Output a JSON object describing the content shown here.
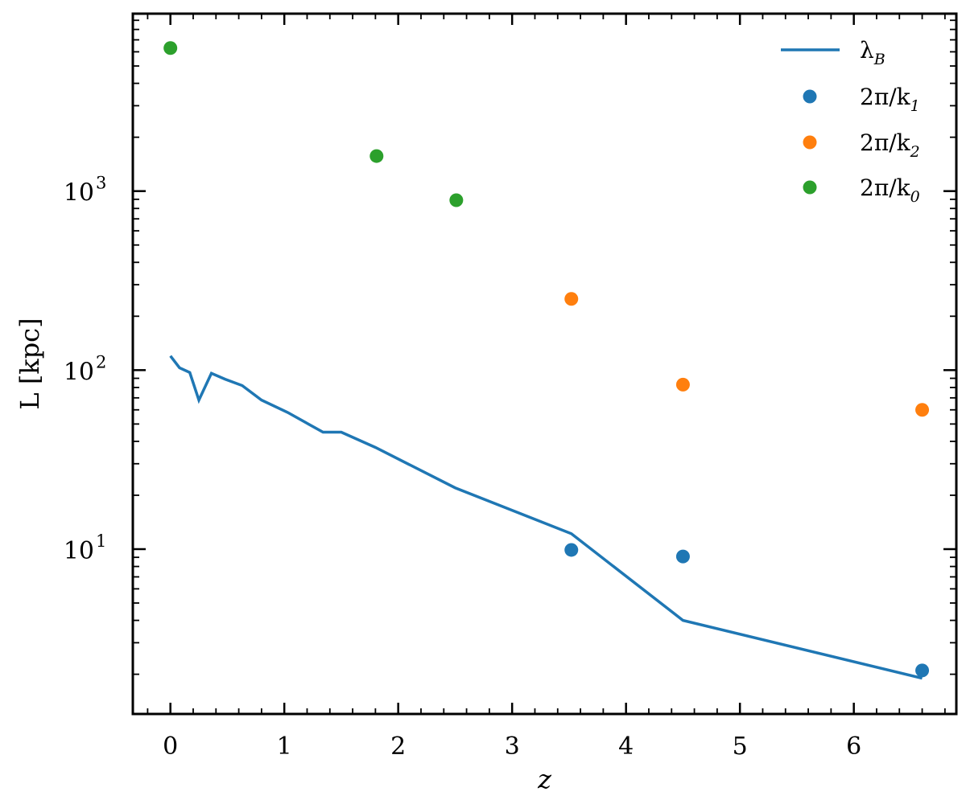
{
  "chart_data": {
    "type": "line+scatter",
    "xlabel": "z",
    "ylabel": "L [kpc]",
    "xlim": [
      -0.33,
      6.9
    ],
    "ylim": [
      1.2,
      9800
    ],
    "yscale": "log",
    "grid": false,
    "legend_position": "top-right",
    "x_ticks": [
      {
        "value": 0,
        "label": "0"
      },
      {
        "value": 1,
        "label": "1"
      },
      {
        "value": 2,
        "label": "2"
      },
      {
        "value": 3,
        "label": "3"
      },
      {
        "value": 4,
        "label": "4"
      },
      {
        "value": 5,
        "label": "5"
      },
      {
        "value": 6,
        "label": "6"
      }
    ],
    "y_ticks": [
      {
        "value": 10,
        "label": "10",
        "exp": "1"
      },
      {
        "value": 100,
        "label": "10",
        "exp": "2"
      },
      {
        "value": 1000,
        "label": "10",
        "exp": "3"
      }
    ],
    "series": [
      {
        "name": "λ",
        "name_sub": "B",
        "kind": "line",
        "color": "#1f77b4",
        "x": [
          0.0,
          0.08,
          0.17,
          0.25,
          0.36,
          0.48,
          0.63,
          0.8,
          1.03,
          1.34,
          1.5,
          1.8,
          2.5,
          3.52,
          4.5,
          6.6
        ],
        "y": [
          120,
          103,
          97,
          68,
          96,
          89,
          82,
          68,
          58,
          45,
          45,
          37,
          22,
          12.2,
          4.0,
          1.9
        ]
      },
      {
        "name": "2π/k",
        "name_sub": "1",
        "kind": "scatter",
        "color": "#1f77b4",
        "x": [
          3.52,
          4.5,
          6.6
        ],
        "y": [
          9.9,
          9.1,
          2.1
        ]
      },
      {
        "name": "2π/k",
        "name_sub": "2",
        "kind": "scatter",
        "color": "#ff7f0e",
        "x": [
          3.52,
          4.5,
          6.6
        ],
        "y": [
          250,
          83,
          60
        ]
      },
      {
        "name": "2π/k",
        "name_sub": "0",
        "kind": "scatter",
        "color": "#2ca02c",
        "x": [
          0.0,
          1.81,
          2.51
        ],
        "y": [
          6300,
          1570,
          890
        ]
      }
    ]
  }
}
